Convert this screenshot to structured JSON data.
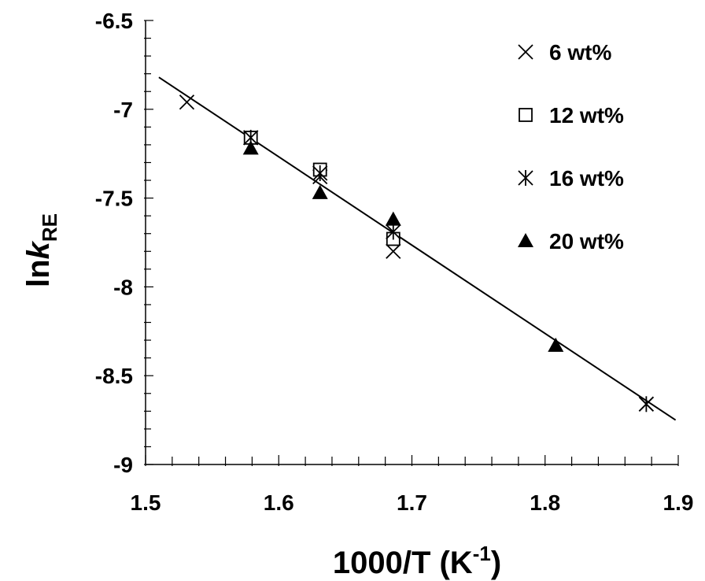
{
  "chart_data": {
    "type": "scatter",
    "title": "",
    "xlabel": "1000/T (K",
    "xlabel_superscript": "-1",
    "xlabel_suffix": ")",
    "ylabel_main": "ln",
    "ylabel_italic": "k",
    "ylabel_subscript": "RE",
    "xlim": [
      1.5,
      1.9
    ],
    "ylim": [
      -9,
      -6.5
    ],
    "x_ticks": [
      1.5,
      1.6,
      1.7,
      1.8,
      1.9
    ],
    "x_tick_labels": [
      "1.5",
      "1.6",
      "1.7",
      "1.8",
      "1.9"
    ],
    "y_ticks": [
      -9,
      -8.5,
      -8,
      -7.5,
      -7,
      -6.5
    ],
    "y_tick_labels": [
      "-9",
      "-8.5",
      "-8",
      "-7.5",
      "-7",
      "-6.5"
    ],
    "x_minor_step": 0.02,
    "y_minor_step": 0.1,
    "grid": false,
    "legend_position": "top-right",
    "series": [
      {
        "name": "6 wt%",
        "marker": "x",
        "x": [
          1.531,
          1.579,
          1.631,
          1.686,
          1.876
        ],
        "y": [
          -6.96,
          -7.16,
          -7.38,
          -7.8,
          -8.66
        ]
      },
      {
        "name": "12 wt%",
        "marker": "open-square",
        "x": [
          1.579,
          1.631,
          1.686
        ],
        "y": [
          -7.16,
          -7.34,
          -7.73
        ]
      },
      {
        "name": "16 wt%",
        "marker": "asterisk",
        "x": [
          1.579,
          1.631,
          1.686,
          1.876
        ],
        "y": [
          -7.16,
          -7.36,
          -7.69,
          -8.66
        ]
      },
      {
        "name": "20 wt%",
        "marker": "filled-triangle",
        "x": [
          1.579,
          1.631,
          1.686,
          1.808
        ],
        "y": [
          -7.22,
          -7.47,
          -7.62,
          -8.33
        ]
      }
    ],
    "fit_line": {
      "x": [
        1.51,
        1.898
      ],
      "y": [
        -6.82,
        -8.75
      ]
    }
  }
}
